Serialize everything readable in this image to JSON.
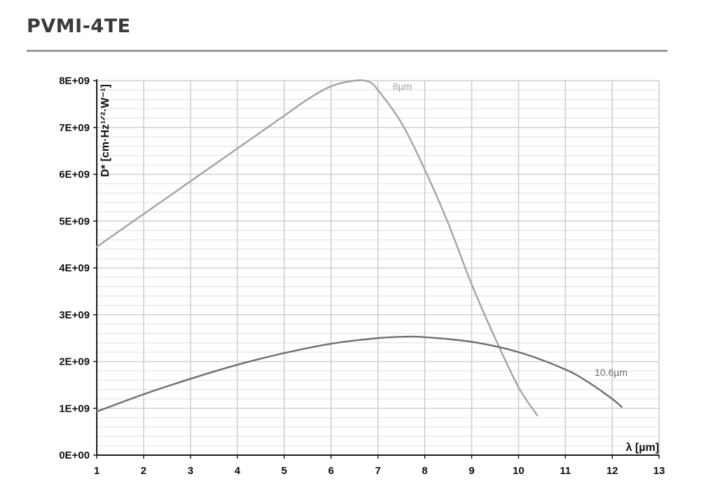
{
  "header": {
    "title": "PVMI-4TE"
  },
  "chart_data": {
    "type": "line",
    "title": "",
    "xlabel": "λ [µm]",
    "ylabel": "D* [cm·Hz¹ᐟ²·W⁻¹]",
    "xlim": [
      1,
      13
    ],
    "ylim": [
      0,
      8000000000
    ],
    "x_ticks": [
      1,
      2,
      3,
      4,
      5,
      6,
      7,
      8,
      9,
      10,
      11,
      12,
      13
    ],
    "y_ticks": [
      0,
      1000000000,
      2000000000,
      3000000000,
      4000000000,
      5000000000,
      6000000000,
      7000000000,
      8000000000
    ],
    "y_tick_labels": [
      "0E+00",
      "1E+09",
      "2E+09",
      "3E+09",
      "4E+09",
      "5E+09",
      "6E+09",
      "7E+09",
      "8E+09"
    ],
    "grid": true,
    "legend": "none",
    "series": [
      {
        "name": "8µm",
        "color": "#a4a4a4",
        "x": [
          1,
          2,
          3,
          4,
          5,
          5.5,
          6,
          6.5,
          6.8,
          7,
          7.5,
          8,
          8.5,
          9,
          9.5,
          10,
          10.4
        ],
        "y": [
          4450000000,
          5150000000,
          5850000000,
          6550000000,
          7250000000,
          7600000000,
          7880000000,
          8000000000,
          7980000000,
          7800000000,
          7100000000,
          6100000000,
          4950000000,
          3650000000,
          2500000000,
          1450000000,
          850000000
        ]
      },
      {
        "name": "10.6µm",
        "color": "#6e6e6e",
        "x": [
          1,
          2,
          3,
          4,
          5,
          6,
          7,
          7.6,
          8,
          9,
          10,
          11,
          11.5,
          12,
          12.2
        ],
        "y": [
          930000000,
          1300000000,
          1630000000,
          1930000000,
          2180000000,
          2380000000,
          2500000000,
          2530000000,
          2520000000,
          2420000000,
          2200000000,
          1830000000,
          1550000000,
          1200000000,
          1030000000
        ]
      }
    ]
  }
}
